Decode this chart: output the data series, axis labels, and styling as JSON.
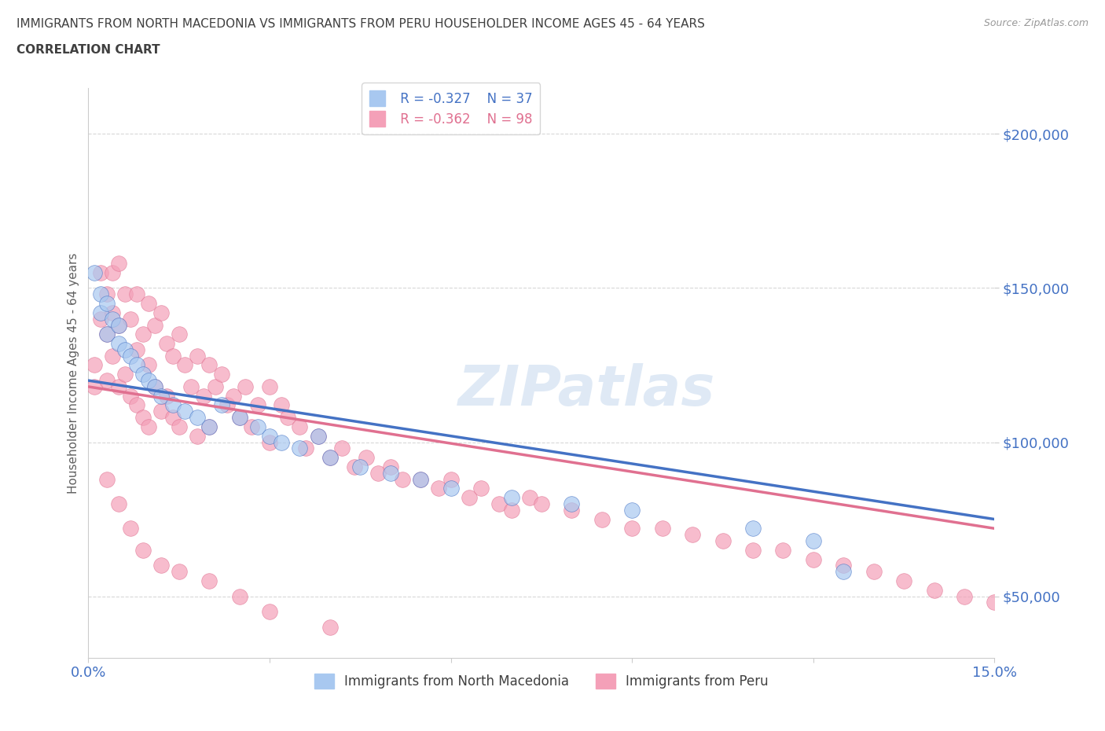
{
  "title_line1": "IMMIGRANTS FROM NORTH MACEDONIA VS IMMIGRANTS FROM PERU HOUSEHOLDER INCOME AGES 45 - 64 YEARS",
  "title_line2": "CORRELATION CHART",
  "source_text": "Source: ZipAtlas.com",
  "ylabel": "Householder Income Ages 45 - 64 years",
  "xlim": [
    0.0,
    0.15
  ],
  "ylim": [
    30000,
    215000
  ],
  "yticks": [
    50000,
    100000,
    150000,
    200000
  ],
  "ytick_labels": [
    "$50,000",
    "$100,000",
    "$150,000",
    "$200,000"
  ],
  "xticks": [
    0.0,
    0.03,
    0.06,
    0.09,
    0.12,
    0.15
  ],
  "xtick_labels": [
    "0.0%",
    "",
    "",
    "",
    "",
    "15.0%"
  ],
  "macedonia_R": -0.327,
  "macedonia_N": 37,
  "peru_R": -0.362,
  "peru_N": 98,
  "macedonia_color": "#a8c8f0",
  "peru_color": "#f4a0b8",
  "macedonia_line_color": "#4472c4",
  "peru_line_color": "#e07090",
  "watermark": "ZIPatlas",
  "background_color": "#ffffff",
  "grid_color": "#d8d8d8",
  "title_color": "#404040",
  "axis_label_color": "#606060",
  "tick_label_color": "#4472c4",
  "legend_R_color": "#4472c4",
  "legend_peru_color": "#e07090",
  "mac_scatter_x": [
    0.001,
    0.002,
    0.002,
    0.003,
    0.003,
    0.004,
    0.005,
    0.005,
    0.006,
    0.007,
    0.008,
    0.009,
    0.01,
    0.011,
    0.012,
    0.014,
    0.016,
    0.018,
    0.02,
    0.022,
    0.025,
    0.028,
    0.03,
    0.032,
    0.035,
    0.038,
    0.04,
    0.045,
    0.05,
    0.055,
    0.06,
    0.07,
    0.08,
    0.09,
    0.11,
    0.12,
    0.125
  ],
  "mac_scatter_y": [
    155000,
    148000,
    142000,
    145000,
    135000,
    140000,
    138000,
    132000,
    130000,
    128000,
    125000,
    122000,
    120000,
    118000,
    115000,
    112000,
    110000,
    108000,
    105000,
    112000,
    108000,
    105000,
    102000,
    100000,
    98000,
    102000,
    95000,
    92000,
    90000,
    88000,
    85000,
    82000,
    80000,
    78000,
    72000,
    68000,
    58000
  ],
  "peru_scatter_x": [
    0.001,
    0.001,
    0.002,
    0.002,
    0.003,
    0.003,
    0.003,
    0.004,
    0.004,
    0.004,
    0.005,
    0.005,
    0.005,
    0.006,
    0.006,
    0.007,
    0.007,
    0.008,
    0.008,
    0.008,
    0.009,
    0.009,
    0.01,
    0.01,
    0.01,
    0.011,
    0.011,
    0.012,
    0.012,
    0.013,
    0.013,
    0.014,
    0.014,
    0.015,
    0.015,
    0.016,
    0.017,
    0.018,
    0.018,
    0.019,
    0.02,
    0.02,
    0.021,
    0.022,
    0.023,
    0.024,
    0.025,
    0.026,
    0.027,
    0.028,
    0.03,
    0.03,
    0.032,
    0.033,
    0.035,
    0.036,
    0.038,
    0.04,
    0.042,
    0.044,
    0.046,
    0.048,
    0.05,
    0.052,
    0.055,
    0.058,
    0.06,
    0.063,
    0.065,
    0.068,
    0.07,
    0.073,
    0.075,
    0.08,
    0.085,
    0.09,
    0.095,
    0.1,
    0.105,
    0.11,
    0.115,
    0.12,
    0.125,
    0.13,
    0.135,
    0.14,
    0.145,
    0.15,
    0.003,
    0.005,
    0.007,
    0.009,
    0.012,
    0.015,
    0.02,
    0.025,
    0.03,
    0.04
  ],
  "peru_scatter_y": [
    125000,
    118000,
    155000,
    140000,
    148000,
    135000,
    120000,
    155000,
    142000,
    128000,
    158000,
    138000,
    118000,
    148000,
    122000,
    140000,
    115000,
    148000,
    130000,
    112000,
    135000,
    108000,
    145000,
    125000,
    105000,
    138000,
    118000,
    142000,
    110000,
    132000,
    115000,
    128000,
    108000,
    135000,
    105000,
    125000,
    118000,
    128000,
    102000,
    115000,
    125000,
    105000,
    118000,
    122000,
    112000,
    115000,
    108000,
    118000,
    105000,
    112000,
    118000,
    100000,
    112000,
    108000,
    105000,
    98000,
    102000,
    95000,
    98000,
    92000,
    95000,
    90000,
    92000,
    88000,
    88000,
    85000,
    88000,
    82000,
    85000,
    80000,
    78000,
    82000,
    80000,
    78000,
    75000,
    72000,
    72000,
    70000,
    68000,
    65000,
    65000,
    62000,
    60000,
    58000,
    55000,
    52000,
    50000,
    48000,
    88000,
    80000,
    72000,
    65000,
    60000,
    58000,
    55000,
    50000,
    45000,
    40000
  ]
}
